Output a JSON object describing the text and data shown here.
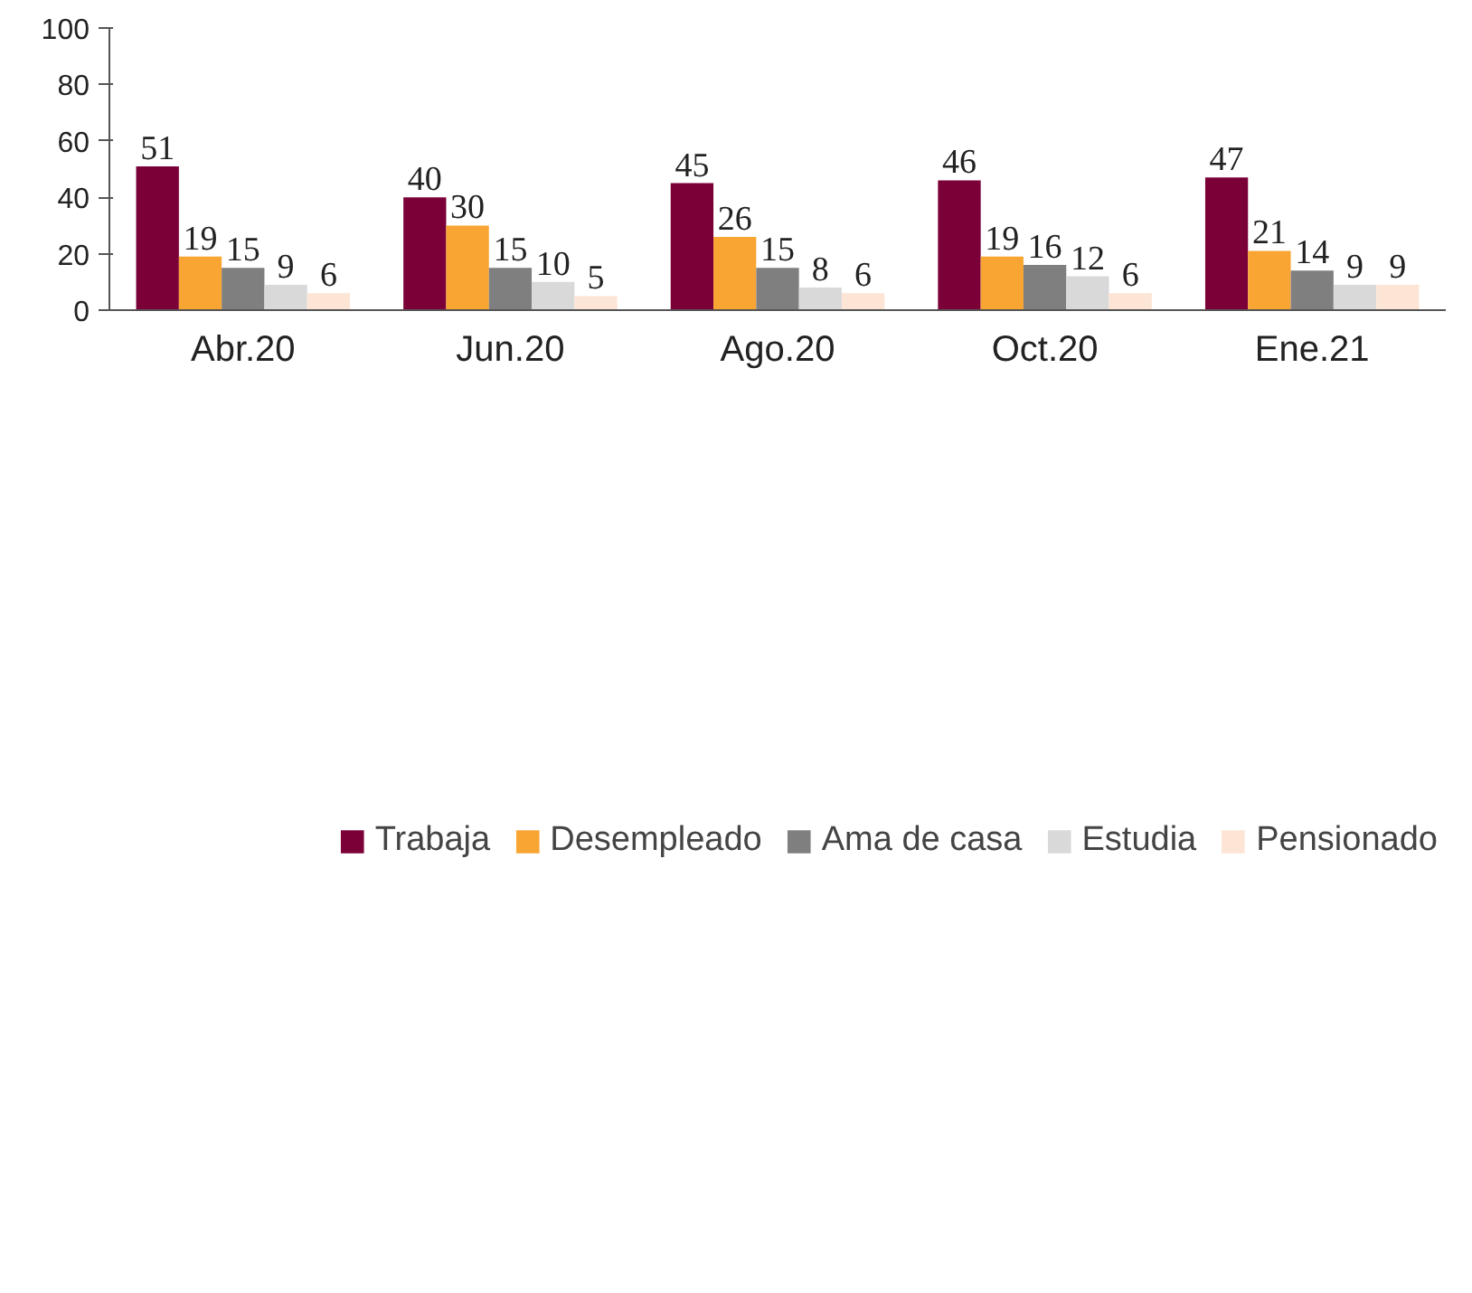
{
  "chart_data": {
    "type": "bar",
    "categories": [
      "Abr.20",
      "Jun.20",
      "Ago.20",
      "Oct.20",
      "Ene.21"
    ],
    "series": [
      {
        "name": "Trabaja",
        "color": "#7b0038",
        "values": [
          51,
          40,
          45,
          46,
          47
        ]
      },
      {
        "name": "Desempleado",
        "color": "#f9a533",
        "values": [
          19,
          30,
          26,
          19,
          21
        ]
      },
      {
        "name": "Ama de casa",
        "color": "#7f7f7f",
        "values": [
          15,
          15,
          15,
          16,
          14
        ]
      },
      {
        "name": "Estudia",
        "color": "#d9d9d9",
        "values": [
          9,
          10,
          8,
          12,
          9
        ]
      },
      {
        "name": "Pensionado",
        "color": "#fde5d6",
        "values": [
          6,
          5,
          6,
          6,
          9
        ]
      }
    ],
    "ylim": [
      0,
      100
    ],
    "yticks": [
      0,
      20,
      40,
      60,
      80,
      100
    ],
    "grid": false,
    "legend": "bottom",
    "data_labels": true
  }
}
